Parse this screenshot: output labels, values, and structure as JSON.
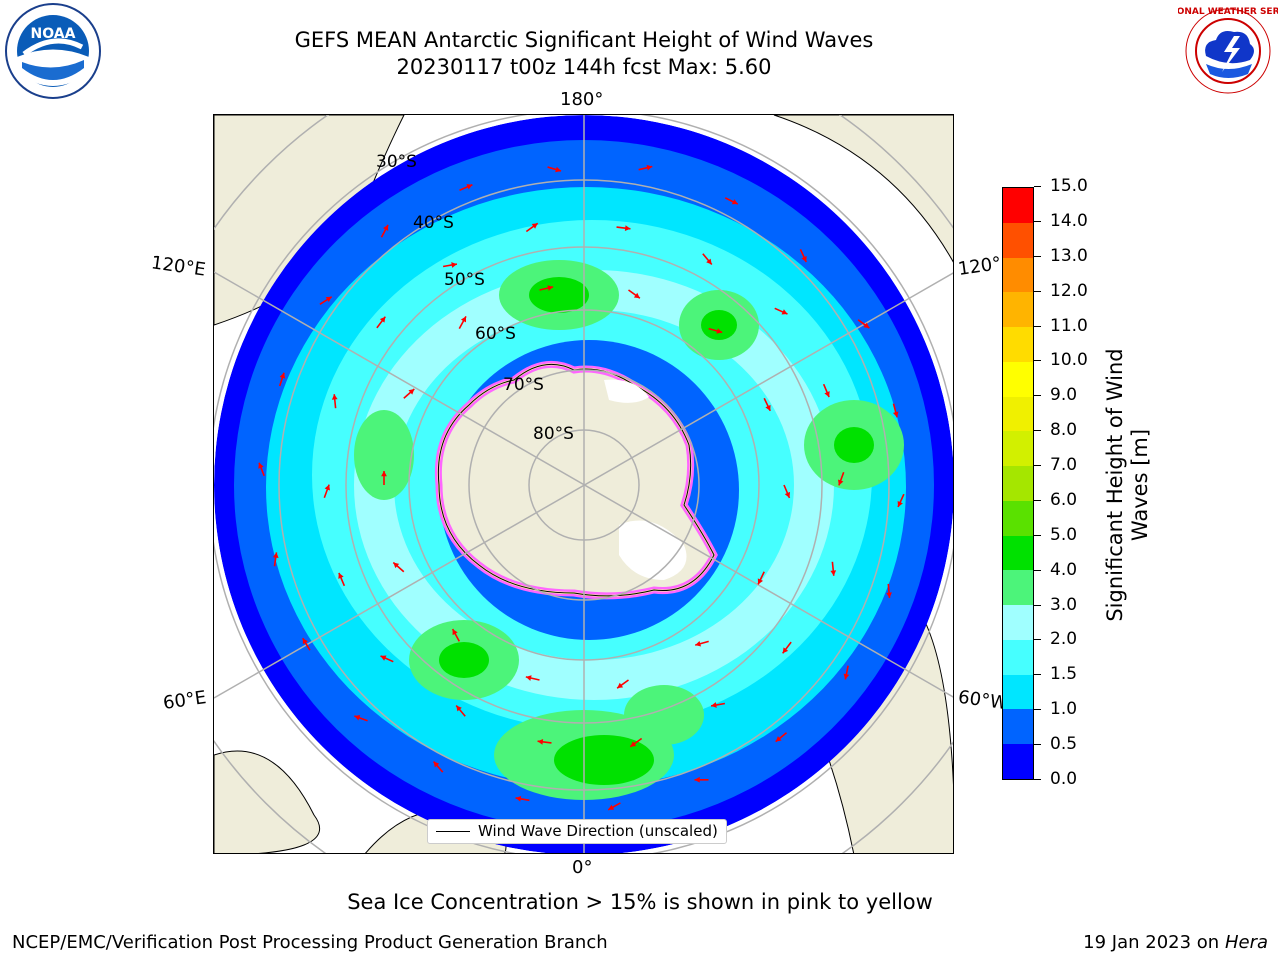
{
  "header": {
    "title_line1": "GEFS MEAN Antarctic Significant Height of Wind Waves",
    "title_line2": "20230117 t00z 144h fcst   Max: 5.60"
  },
  "logos": {
    "left_logo": "noaa-logo",
    "right_logo": "national-weather-service-logo",
    "noaa_text": "NOAA",
    "nws_text": "NATIONAL WEATHER SERVICE"
  },
  "map": {
    "projection": "south-polar-stereographic",
    "longitude_labels": {
      "top": "180°",
      "bottom": "0°",
      "left_upper": "120°E",
      "left_lower": "60°E",
      "right_upper": "120°",
      "right_lower": "60°W"
    },
    "latitude_labels": [
      "30°S",
      "40°S",
      "50°S",
      "60°S",
      "70°S",
      "80°S"
    ],
    "colors": {
      "land": "#efedda",
      "ocean_low": "#0000ff",
      "wave_1": "#0066ff",
      "wave_2": "#00e5ff",
      "wave_3": "#a8ffff",
      "wave_4": "#48f27a",
      "wave_5": "#00e000",
      "arrow": "#ff0000",
      "ice": "#ff66ff",
      "gridline": "#b0b0b0"
    },
    "legend": {
      "label": "Wind Wave Direction (unscaled)"
    }
  },
  "colorbar": {
    "label": "Significant Height of Wind Waves [m]",
    "ticks": [
      "0.0",
      "0.5",
      "1.0",
      "1.5",
      "2.0",
      "3.0",
      "4.0",
      "5.0",
      "6.0",
      "7.0",
      "8.0",
      "9.0",
      "10.0",
      "11.0",
      "12.0",
      "13.0",
      "14.0",
      "15.0"
    ],
    "colors": [
      "#0000ff",
      "#0064ff",
      "#00e6ff",
      "#46ffff",
      "#a0ffff",
      "#4cf47a",
      "#00e100",
      "#5ae100",
      "#a5e600",
      "#d2f000",
      "#f0f000",
      "#ffff00",
      "#ffdc00",
      "#ffb400",
      "#ff8c00",
      "#ff5000",
      "#ff0000"
    ]
  },
  "footer": {
    "note": "Sea Ice Concentration > 15% is shown in pink to yellow",
    "credit": "NCEP/EMC/Verification Post Processing Product Generation Branch",
    "date": "19 Jan 2023 on",
    "machine": "Hera"
  }
}
